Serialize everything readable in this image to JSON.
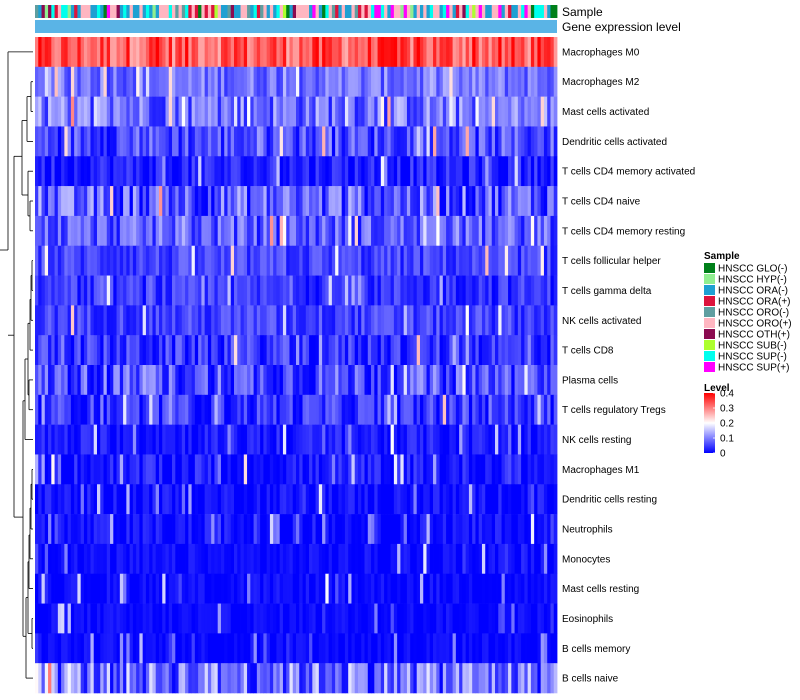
{
  "chart_data": {
    "type": "heatmap",
    "title": "",
    "annotation_tracks": [
      "Sample",
      "Gene expression level"
    ],
    "rows": [
      {
        "label": "Macrophages M0",
        "mean": 0.33,
        "spread": 0.07
      },
      {
        "label": "Macrophages M2",
        "mean": 0.09,
        "spread": 0.05
      },
      {
        "label": "Mast cells activated",
        "mean": 0.09,
        "spread": 0.07
      },
      {
        "label": "Dendritic cells activated",
        "mean": 0.06,
        "spread": 0.06
      },
      {
        "label": "T cells CD4 memory activated",
        "mean": 0.025,
        "spread": 0.04
      },
      {
        "label": "T cells CD4 naive",
        "mean": 0.07,
        "spread": 0.08
      },
      {
        "label": "T cells CD4 memory resting",
        "mean": 0.07,
        "spread": 0.06
      },
      {
        "label": "T cells follicular helper",
        "mean": 0.05,
        "spread": 0.04
      },
      {
        "label": "T cells gamma delta",
        "mean": 0.04,
        "spread": 0.04
      },
      {
        "label": "NK cells activated",
        "mean": 0.05,
        "spread": 0.04
      },
      {
        "label": "T cells CD8",
        "mean": 0.04,
        "spread": 0.05
      },
      {
        "label": "Plasma cells",
        "mean": 0.06,
        "spread": 0.07
      },
      {
        "label": "T cells regulatory  Tregs",
        "mean": 0.04,
        "spread": 0.05
      },
      {
        "label": "NK cells resting",
        "mean": 0.02,
        "spread": 0.03
      },
      {
        "label": "Macrophages M1",
        "mean": 0.015,
        "spread": 0.04
      },
      {
        "label": "Dendritic cells resting",
        "mean": 0.01,
        "spread": 0.03
      },
      {
        "label": "Neutrophils",
        "mean": 0.01,
        "spread": 0.03
      },
      {
        "label": "Monocytes",
        "mean": 0.008,
        "spread": 0.02
      },
      {
        "label": "Mast cells resting",
        "mean": 0.008,
        "spread": 0.02
      },
      {
        "label": "Eosinophils",
        "mean": 0.005,
        "spread": 0.02
      },
      {
        "label": "B cells memory",
        "mean": 0.005,
        "spread": 0.02
      },
      {
        "label": "B cells naive",
        "mean": 0.09,
        "spread": 0.09
      }
    ],
    "n_columns": 160,
    "value_range": [
      0,
      0.4
    ],
    "color_scale": [
      "#0000ff",
      "#ffffff",
      "#ff0000"
    ],
    "legend_sample": {
      "title": "Sample",
      "entries": [
        {
          "label": "HNSCC GLO(-)",
          "color": "#00801a"
        },
        {
          "label": "HNSCC HYP(-)",
          "color": "#90ee90"
        },
        {
          "label": "HNSCC ORA(-)",
          "color": "#1ea0d2"
        },
        {
          "label": "HNSCC ORA(+)",
          "color": "#dc143c"
        },
        {
          "label": "HNSCC ORO(-)",
          "color": "#5f9ea0"
        },
        {
          "label": "HNSCC ORO(+)",
          "color": "#ffb6c1"
        },
        {
          "label": "HNSCC OTH(+)",
          "color": "#8b0a50"
        },
        {
          "label": "HNSCC SUB(-)",
          "color": "#adff2f"
        },
        {
          "label": "HNSCC SUP(-)",
          "color": "#00ffee"
        },
        {
          "label": "HNSCC SUP(+)",
          "color": "#ff00ff"
        }
      ]
    },
    "legend_level": {
      "title": "Level",
      "ticks": [
        "0.4",
        "0.3",
        "0.2",
        "0.1",
        "0"
      ],
      "tick_values": [
        0.4,
        0.3,
        0.2,
        0.1,
        0
      ]
    },
    "expression_track_color": "#5ab4e6"
  }
}
